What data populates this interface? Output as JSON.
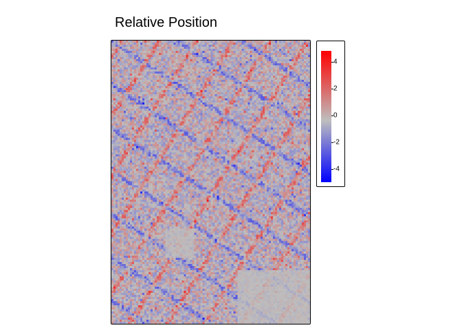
{
  "chart_data": {
    "type": "heatmap",
    "title": "Relative Position",
    "value_range": [
      -5,
      4.8
    ],
    "colorscale": {
      "low": "#0000ff",
      "mid": "#bebebe",
      "high": "#ff0000"
    },
    "legend": {
      "position": "right",
      "ticks": [
        "4",
        "2",
        "0",
        "-2",
        "-4"
      ],
      "tick_values": [
        4,
        2,
        0,
        -2,
        -4
      ]
    },
    "grid": false
  }
}
